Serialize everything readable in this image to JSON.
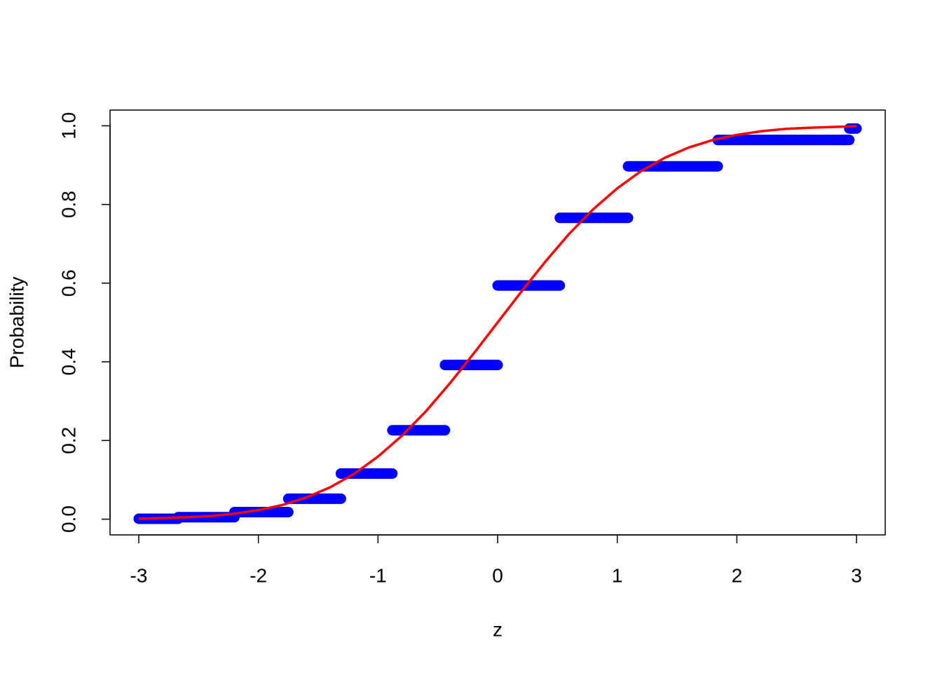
{
  "chart_data": {
    "type": "step-cdf",
    "x_label": "z",
    "y_label": "Probability",
    "xlim": [
      -3.24,
      3.24
    ],
    "ylim": [
      -0.04,
      1.04
    ],
    "xticks": [
      -3,
      -2,
      -1,
      0,
      1,
      2,
      3
    ],
    "yticks": [
      {
        "value": 0,
        "label": "0.0"
      },
      {
        "value": 0.2,
        "label": "0.2"
      },
      {
        "value": 0.4,
        "label": "0.4"
      },
      {
        "value": 0.6,
        "label": "0.6"
      },
      {
        "value": 0.8,
        "label": "0.8"
      },
      {
        "value": 1,
        "label": "1.0"
      }
    ],
    "steps": {
      "color": "#0000ff",
      "x_start": [
        -3,
        -2.67,
        -2.2,
        -1.75,
        -1.31,
        -0.88,
        -0.44,
        0,
        0.52,
        1.09,
        1.84,
        2.94
      ],
      "x_end": [
        -2.67,
        -2.2,
        -1.75,
        -1.31,
        -0.88,
        -0.44,
        0,
        0.52,
        1.09,
        1.84,
        2.94,
        3
      ],
      "values": [
        0.001,
        0.005,
        0.018,
        0.052,
        0.116,
        0.226,
        0.392,
        0.594,
        0.766,
        0.897,
        0.964,
        0.993
      ]
    },
    "curve": {
      "color": "#ff0000",
      "x": [
        -3,
        -2.8,
        -2.6,
        -2.4,
        -2.2,
        -2,
        -1.8,
        -1.6,
        -1.4,
        -1.2,
        -1,
        -0.8,
        -0.6,
        -0.4,
        -0.2,
        0,
        0.2,
        0.4,
        0.6,
        0.8,
        1,
        1.2,
        1.4,
        1.6,
        1.8,
        2,
        2.2,
        2.4,
        2.6,
        2.8,
        3
      ],
      "values": [
        0.001,
        0.003,
        0.005,
        0.008,
        0.014,
        0.023,
        0.036,
        0.055,
        0.081,
        0.115,
        0.159,
        0.212,
        0.274,
        0.345,
        0.421,
        0.5,
        0.579,
        0.655,
        0.726,
        0.788,
        0.841,
        0.885,
        0.919,
        0.945,
        0.964,
        0.977,
        0.986,
        0.992,
        0.995,
        0.997,
        0.999
      ]
    }
  }
}
